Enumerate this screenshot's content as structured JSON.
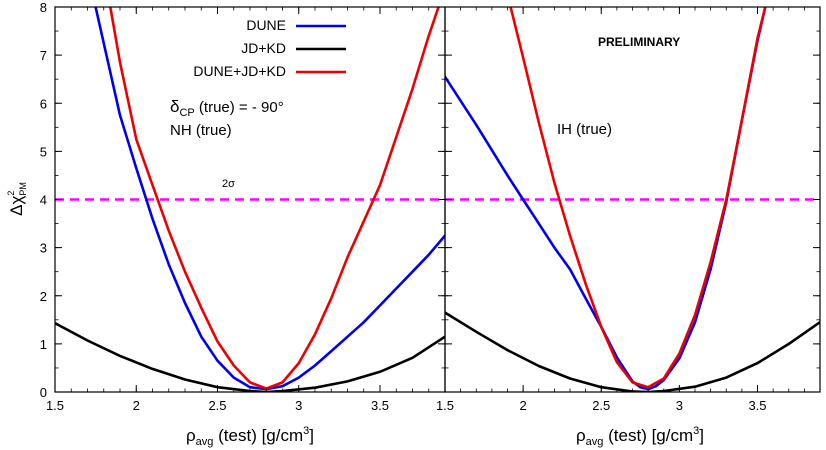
{
  "chart_data": [
    {
      "type": "line",
      "panel": "left",
      "xlabel": "ρ",
      "xlabel_sub": "avg",
      "xlabel_rest": " (test) [g/cm",
      "xlabel_sup": "3",
      "xlabel_end": "]",
      "ylabel_main": "Δχ",
      "ylabel_sup": "2",
      "ylabel_sub": "PM",
      "xlim": [
        1.5,
        3.9
      ],
      "ylim": [
        0,
        8
      ],
      "x_ticks": [
        "1.5",
        "2",
        "2.5",
        "3",
        "3.5"
      ],
      "x_tick_values": [
        1.5,
        2,
        2.5,
        3,
        3.5
      ],
      "y_ticks": [
        "0",
        "1",
        "2",
        "3",
        "4",
        "5",
        "6",
        "7",
        "8"
      ],
      "y_tick_values": [
        0,
        1,
        2,
        3,
        4,
        5,
        6,
        7,
        8
      ],
      "reference_line": {
        "y": 4,
        "label": "2σ",
        "color": "#ff00ff",
        "style": "dashed"
      },
      "annotations": {
        "delta_main": "δ",
        "delta_sub": "CP",
        "delta_rest": " (true) = - 90°",
        "hierarchy": "NH (true)"
      },
      "legend": [
        {
          "name": "DUNE",
          "color": "#0000ee"
        },
        {
          "name": "JD+KD",
          "color": "#000000"
        },
        {
          "name": "DUNE+JD+KD",
          "color": "#ee0000"
        }
      ],
      "series": [
        {
          "name": "DUNE",
          "color": "#0000ee",
          "x": [
            1.75,
            1.9,
            2.0,
            2.1,
            2.2,
            2.3,
            2.4,
            2.5,
            2.6,
            2.7,
            2.8,
            2.9,
            3.0,
            3.1,
            3.2,
            3.3,
            3.4,
            3.5,
            3.6,
            3.7,
            3.8,
            3.9
          ],
          "y": [
            8.0,
            5.75,
            4.65,
            3.6,
            2.65,
            1.85,
            1.15,
            0.65,
            0.3,
            0.1,
            0.06,
            0.12,
            0.3,
            0.55,
            0.85,
            1.15,
            1.45,
            1.8,
            2.15,
            2.5,
            2.85,
            3.25
          ]
        },
        {
          "name": "JD+KD",
          "color": "#000000",
          "x": [
            1.5,
            1.7,
            1.9,
            2.1,
            2.3,
            2.5,
            2.7,
            2.8,
            2.9,
            3.1,
            3.3,
            3.5,
            3.7,
            3.9
          ],
          "y": [
            1.43,
            1.07,
            0.75,
            0.48,
            0.26,
            0.1,
            0.02,
            0.0,
            0.02,
            0.09,
            0.22,
            0.42,
            0.71,
            1.15
          ]
        },
        {
          "name": "DUNE+JD+KD",
          "color": "#ee0000",
          "x": [
            1.84,
            1.9,
            2.0,
            2.1,
            2.2,
            2.3,
            2.4,
            2.5,
            2.6,
            2.7,
            2.8,
            2.9,
            3.0,
            3.1,
            3.2,
            3.3,
            3.4,
            3.5,
            3.6,
            3.7,
            3.8,
            3.86
          ],
          "y": [
            8.0,
            6.85,
            5.25,
            4.3,
            3.35,
            2.5,
            1.75,
            1.05,
            0.55,
            0.2,
            0.07,
            0.2,
            0.6,
            1.2,
            1.95,
            2.8,
            3.55,
            4.3,
            5.3,
            6.3,
            7.4,
            8.0
          ]
        }
      ]
    },
    {
      "type": "line",
      "panel": "right",
      "xlabel": "ρ",
      "xlabel_sub": "avg",
      "xlabel_rest": " (test) [g/cm",
      "xlabel_sup": "3",
      "xlabel_end": "]",
      "xlim": [
        1.5,
        3.9
      ],
      "ylim": [
        0,
        8
      ],
      "x_ticks": [
        "1.5",
        "2",
        "2.5",
        "3",
        "3.5"
      ],
      "x_tick_values": [
        1.5,
        2,
        2.5,
        3,
        3.5
      ],
      "reference_line": {
        "y": 4,
        "color": "#ff00ff",
        "style": "dashed"
      },
      "annotations": {
        "preliminary": "PRELIMINARY",
        "hierarchy": "IH (true)"
      },
      "series": [
        {
          "name": "DUNE",
          "color": "#0000ee",
          "x": [
            1.5,
            1.7,
            1.9,
            2.0,
            2.1,
            2.2,
            2.3,
            2.4,
            2.5,
            2.6,
            2.7,
            2.75,
            2.8,
            2.85,
            2.9,
            3.0,
            3.1,
            3.2,
            3.3,
            3.4,
            3.5,
            3.55
          ],
          "y": [
            6.55,
            5.55,
            4.5,
            4.0,
            3.5,
            3.0,
            2.55,
            1.95,
            1.35,
            0.72,
            0.22,
            0.1,
            0.06,
            0.12,
            0.25,
            0.7,
            1.45,
            2.55,
            3.95,
            5.65,
            7.3,
            8.0
          ]
        },
        {
          "name": "JD+KD",
          "color": "#000000",
          "x": [
            1.5,
            1.7,
            1.9,
            2.1,
            2.3,
            2.5,
            2.7,
            2.8,
            2.9,
            3.1,
            3.3,
            3.5,
            3.7,
            3.9
          ],
          "y": [
            1.65,
            1.25,
            0.87,
            0.54,
            0.28,
            0.1,
            0.01,
            0.0,
            0.02,
            0.11,
            0.3,
            0.6,
            1.0,
            1.45
          ]
        },
        {
          "name": "DUNE+JD+KD",
          "color": "#ee0000",
          "x": [
            1.92,
            2.0,
            2.1,
            2.2,
            2.3,
            2.4,
            2.5,
            2.6,
            2.7,
            2.8,
            2.9,
            3.0,
            3.1,
            3.2,
            3.3,
            3.4,
            3.5,
            3.55
          ],
          "y": [
            8.0,
            6.95,
            5.6,
            4.35,
            3.25,
            2.25,
            1.35,
            0.62,
            0.2,
            0.1,
            0.28,
            0.8,
            1.6,
            2.7,
            4.0,
            5.65,
            7.35,
            8.0
          ]
        }
      ]
    }
  ]
}
